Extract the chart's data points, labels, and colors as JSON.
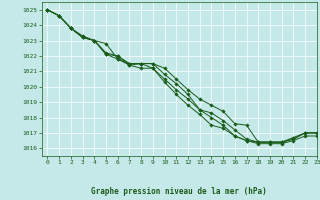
{
  "title": "Graphe pression niveau de la mer (hPa)",
  "bg_color": "#c5e8e8",
  "grid_color": "#ffffff",
  "line_color": "#1a5c1a",
  "xlim": [
    -0.5,
    23
  ],
  "ylim": [
    1015.5,
    1025.5
  ],
  "yticks": [
    1016,
    1017,
    1018,
    1019,
    1020,
    1021,
    1022,
    1023,
    1024,
    1025
  ],
  "xticks": [
    0,
    1,
    2,
    3,
    4,
    5,
    6,
    7,
    8,
    9,
    10,
    11,
    12,
    13,
    14,
    15,
    16,
    17,
    18,
    19,
    20,
    21,
    22,
    23
  ],
  "lines": [
    [
      1025.0,
      1024.6,
      1023.8,
      1023.3,
      1023.0,
      1022.2,
      1022.0,
      1021.5,
      1021.5,
      1021.5,
      1020.8,
      1020.2,
      1019.5,
      1018.5,
      1018.0,
      1017.5,
      1016.8,
      1016.5,
      1016.3,
      1016.3,
      1016.3,
      1016.5,
      1016.8,
      1016.8
    ],
    [
      1025.0,
      1024.6,
      1023.8,
      1023.2,
      1023.0,
      1022.8,
      1021.8,
      1021.5,
      1021.5,
      1021.5,
      1021.2,
      1020.5,
      1019.8,
      1019.2,
      1018.8,
      1018.4,
      1017.6,
      1017.5,
      1016.4,
      1016.4,
      1016.4,
      1016.6,
      1017.0,
      1017.0
    ],
    [
      1025.0,
      1024.6,
      1023.8,
      1023.2,
      1023.0,
      1022.1,
      1022.0,
      1021.4,
      1021.5,
      1021.2,
      1020.5,
      1019.8,
      1019.2,
      1018.5,
      1018.3,
      1017.8,
      1017.2,
      1016.6,
      1016.4,
      1016.4,
      1016.4,
      1016.6,
      1017.0,
      1017.0
    ],
    [
      1025.0,
      1024.6,
      1023.8,
      1023.2,
      1023.0,
      1022.1,
      1021.8,
      1021.4,
      1021.2,
      1021.2,
      1020.3,
      1019.5,
      1018.8,
      1018.2,
      1017.5,
      1017.3,
      1016.8,
      1016.5,
      1016.4,
      1016.4,
      1016.4,
      1016.7,
      1017.0,
      1017.0
    ]
  ],
  "figsize": [
    3.2,
    2.0
  ],
  "dpi": 100
}
